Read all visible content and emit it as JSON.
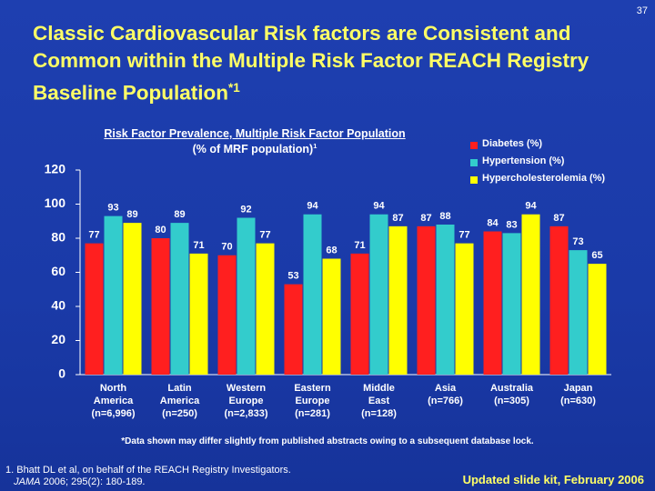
{
  "slide_number": "37",
  "title": "Classic Cardiovascular Risk factors are Consistent and Common within the Multiple Risk Factor REACH Registry Baseline Population",
  "title_note": "*1",
  "chart_data": {
    "type": "bar",
    "title": "Risk Factor Prevalence, Multiple Risk Factor Population",
    "subtitle": "(% of MRF population)",
    "subtitle_note": "1",
    "categories": [
      "North America",
      "Latin America",
      "Western Europe",
      "Eastern Europe",
      "Middle East",
      "Asia",
      "Australia",
      "Japan"
    ],
    "category_notes": [
      "(n=6,996)",
      "(n=250)",
      "(n=2,833)",
      "(n=281)",
      "(n=128)",
      "(n=766)",
      "(n=305)",
      "(n=630)"
    ],
    "series": [
      {
        "name": "Diabetes (%)",
        "color": "#ff1f1f",
        "values": [
          77,
          80,
          70,
          53,
          71,
          87,
          84,
          87
        ]
      },
      {
        "name": "Hypertension (%)",
        "color": "#33cccc",
        "values": [
          93,
          89,
          92,
          94,
          94,
          88,
          83,
          73
        ]
      },
      {
        "name": "Hypercholesterolemia (%)",
        "color": "#ffff00",
        "values": [
          89,
          71,
          77,
          68,
          87,
          77,
          94,
          65
        ]
      }
    ],
    "ylim": [
      0,
      120
    ],
    "yticks": [
      0,
      20,
      40,
      60,
      80,
      100,
      120
    ],
    "legend": "top-right"
  },
  "footnote": "*Data shown may differ slightly from published abstracts owing to a subsequent database lock.",
  "reference": "1. Bhatt DL et al, on behalf of the REACH Registry Investigators.",
  "reference_journal": "JAMA",
  "reference_citation": " 2006; 295(2): 180-189.",
  "edition": "Updated slide kit, February 2006"
}
